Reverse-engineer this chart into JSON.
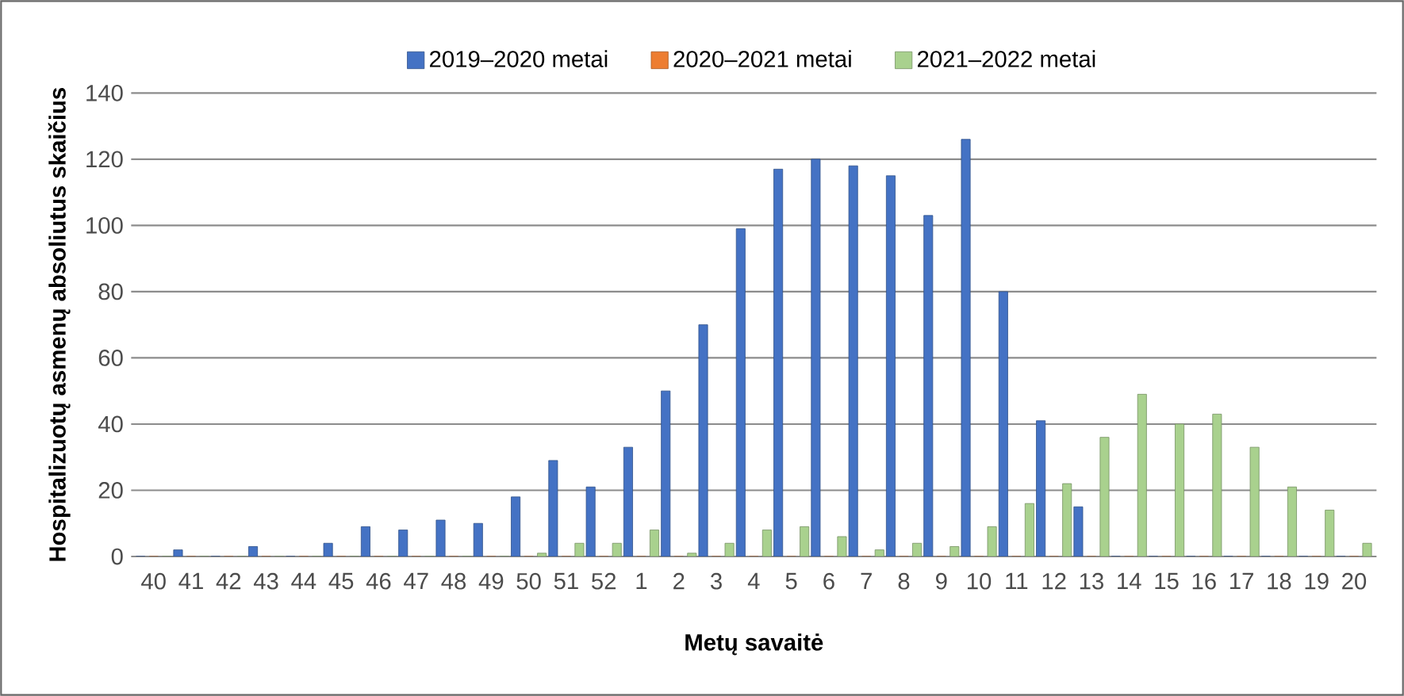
{
  "chart_data": {
    "type": "bar",
    "xlabel": "Metų savaitė",
    "ylabel": "Hospitalizuotų asmenų absoliutus skaičius",
    "categories": [
      "40",
      "41",
      "42",
      "43",
      "44",
      "45",
      "46",
      "47",
      "48",
      "49",
      "50",
      "51",
      "52",
      "1",
      "2",
      "3",
      "4",
      "5",
      "6",
      "7",
      "8",
      "9",
      "10",
      "11",
      "12",
      "13",
      "14",
      "15",
      "16",
      "17",
      "18",
      "19",
      "20"
    ],
    "series": [
      {
        "name": "2019–2020 metai",
        "color": "#4472c4",
        "values": [
          0,
          2,
          0,
          3,
          0,
          4,
          9,
          8,
          11,
          10,
          18,
          29,
          21,
          33,
          50,
          70,
          99,
          117,
          120,
          118,
          115,
          103,
          126,
          80,
          41,
          15,
          0,
          0,
          0,
          0,
          0,
          0,
          0
        ]
      },
      {
        "name": "2020–2021 metai",
        "color": "#ed7d31",
        "values": [
          0,
          0,
          0,
          0,
          0,
          0,
          0,
          0,
          0,
          0,
          0,
          0,
          0,
          0,
          0,
          0,
          0,
          0,
          0,
          0,
          0,
          0,
          0,
          0,
          0,
          0,
          0,
          0,
          0,
          0,
          0,
          0,
          0
        ]
      },
      {
        "name": "2021–2022 metai",
        "color": "#a9d18e",
        "values": [
          0,
          0,
          0,
          0,
          0,
          0,
          0,
          0,
          0,
          0,
          1,
          4,
          4,
          8,
          1,
          4,
          8,
          9,
          6,
          2,
          4,
          3,
          9,
          16,
          22,
          36,
          49,
          40,
          43,
          33,
          21,
          14,
          4
        ]
      }
    ],
    "ylim": [
      0,
      140
    ],
    "yticks": [
      0,
      20,
      40,
      60,
      80,
      100,
      120,
      140
    ],
    "grid": "y",
    "legend": "top"
  }
}
